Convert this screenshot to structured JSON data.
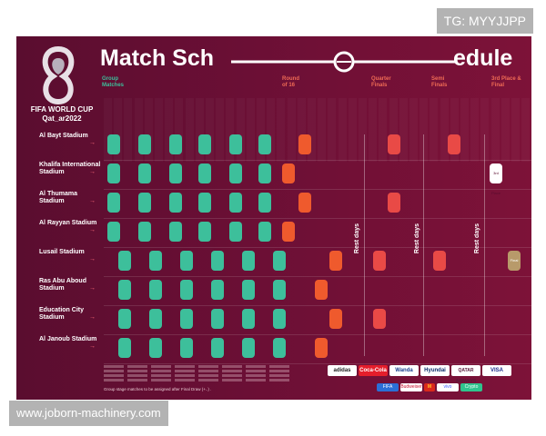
{
  "watermarks": {
    "top": "TG: MYYJJPP",
    "bottom": "www.joborn-machinery.com"
  },
  "header": {
    "title_left": "Match Sch",
    "title_right": "edule",
    "logo_text": "FIFA WORLD CUP Qat_ar2022"
  },
  "stages": {
    "group": "Group Matches",
    "r16": "Round of 16",
    "qf": "Quarter Finals",
    "sf": "Semi Finals",
    "final": "3rd Place & Final"
  },
  "stadiums": [
    "Al Bayt Stadium",
    "Khalifa International Stadium",
    "Al Thumama Stadium",
    "Al Rayyan Stadium",
    "Lusail Stadium",
    "Ras Abu Aboud Stadium",
    "Education City Stadium",
    "Al Janoub Stadium"
  ],
  "rest_days": [
    "Rest days",
    "Rest days",
    "Rest days"
  ],
  "third_place_label": "3rd Place",
  "final_label": "Final",
  "footnote": "Group stage matches to be assigned after Final Draw (+..) .",
  "sponsors_row1": [
    "adidas",
    "Coca-Cola",
    "Wanda",
    "Hyundai",
    "QATAR AIRWAYS",
    "VISA"
  ],
  "sponsors_row2": [
    "FIFA",
    "Budweiser",
    "M",
    "vivo",
    "Crypto"
  ],
  "colors": {
    "group": "#3dbf9b",
    "r16": "#ef5a2d",
    "qf": "#e94a46",
    "final": "#b89a6a",
    "background": "#6b0f35",
    "stage_label": "#3dbf9b",
    "knockout_label": "#ef6b55"
  }
}
